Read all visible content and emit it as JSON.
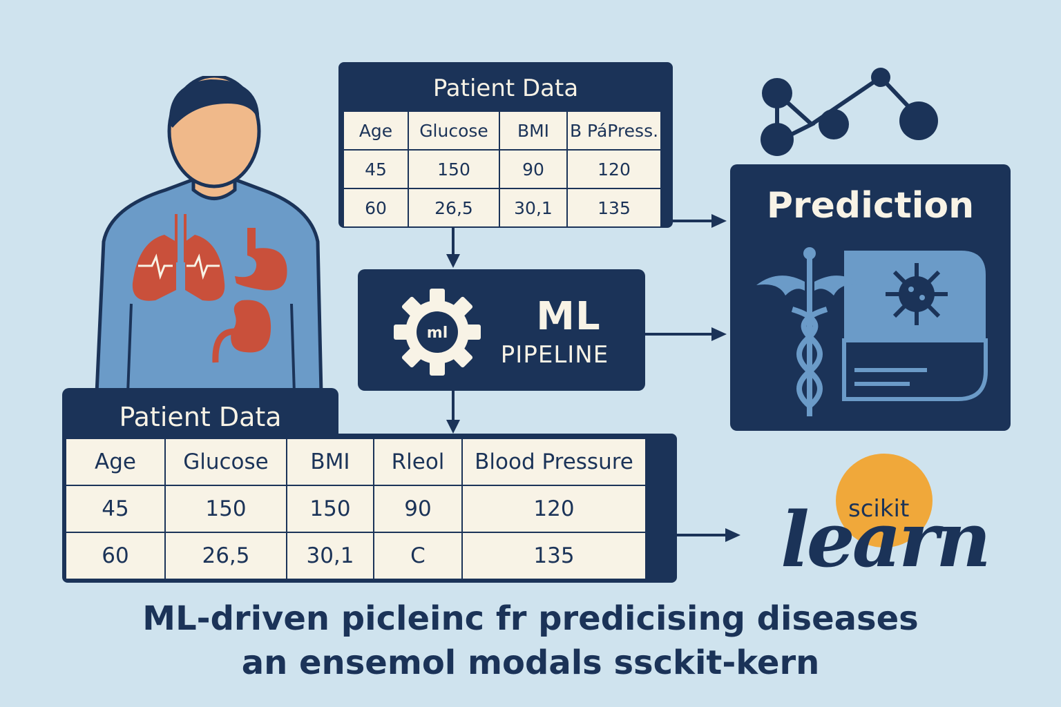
{
  "top_table": {
    "title": "Patient Data",
    "headers": [
      "Age",
      "Glucose",
      "BMI",
      "B PáPress."
    ],
    "rows": [
      [
        "45",
        "150",
        "90",
        "120"
      ],
      [
        "60",
        "26,5",
        "30,1",
        "135"
      ]
    ]
  },
  "bottom_table": {
    "title": "Patient Data",
    "headers": [
      "Age",
      "Glucose",
      "BMI",
      "Rleol",
      "Blood Pressure"
    ],
    "rows": [
      [
        "45",
        "150",
        "150",
        "90",
        "120"
      ],
      [
        "60",
        "26,5",
        "30,1",
        "C",
        "135"
      ]
    ]
  },
  "pipeline": {
    "title": "ML",
    "subtitle": "PIPELINE",
    "gear_label": "ml"
  },
  "prediction": {
    "title": "Prediction"
  },
  "sklearn": {
    "small": "scikit",
    "big": "learn",
    "accent_color": "#f0a83a"
  },
  "caption": {
    "line1": "ML-driven picleinc fr predicising diseases",
    "line2": "an ensemol modals ssckit-kern"
  },
  "colors": {
    "navy": "#1b3358",
    "background": "#cfe3ee",
    "organ": "#c9503b",
    "shirt": "#6b9bc8",
    "skin": "#f0b98a",
    "cream": "#f8f3e6"
  },
  "icons": [
    "person-illustration",
    "network-icon",
    "gear-icon",
    "caduceus-icon",
    "virus-icon",
    "arrow-icon"
  ]
}
